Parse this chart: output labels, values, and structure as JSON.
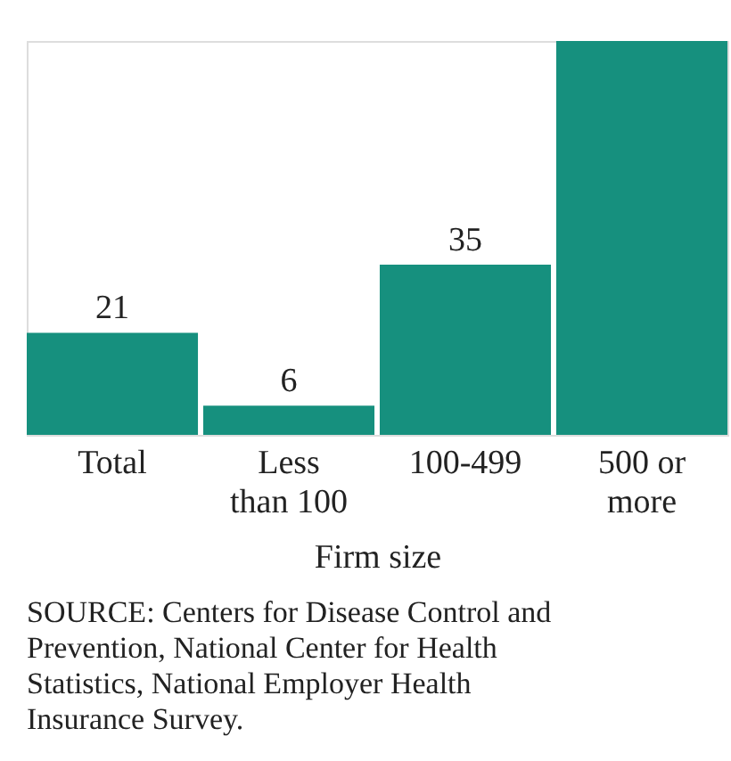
{
  "chart_data": {
    "type": "bar",
    "categories": [
      "Total",
      "Less than 100",
      "100-499",
      "500 or more"
    ],
    "values": [
      21,
      6,
      35,
      81
    ],
    "value_labels": [
      "21",
      "6",
      "35",
      null
    ],
    "color": "#16907e",
    "ylim": [
      0,
      81
    ],
    "xlabel": "Firm size",
    "tick_labels": "x",
    "grid": false,
    "annotations": [
      "SOURCE: Centers for Disease Control and Prevention, National Center for Health Statistics, National Employer Health Insurance Survey."
    ]
  }
}
